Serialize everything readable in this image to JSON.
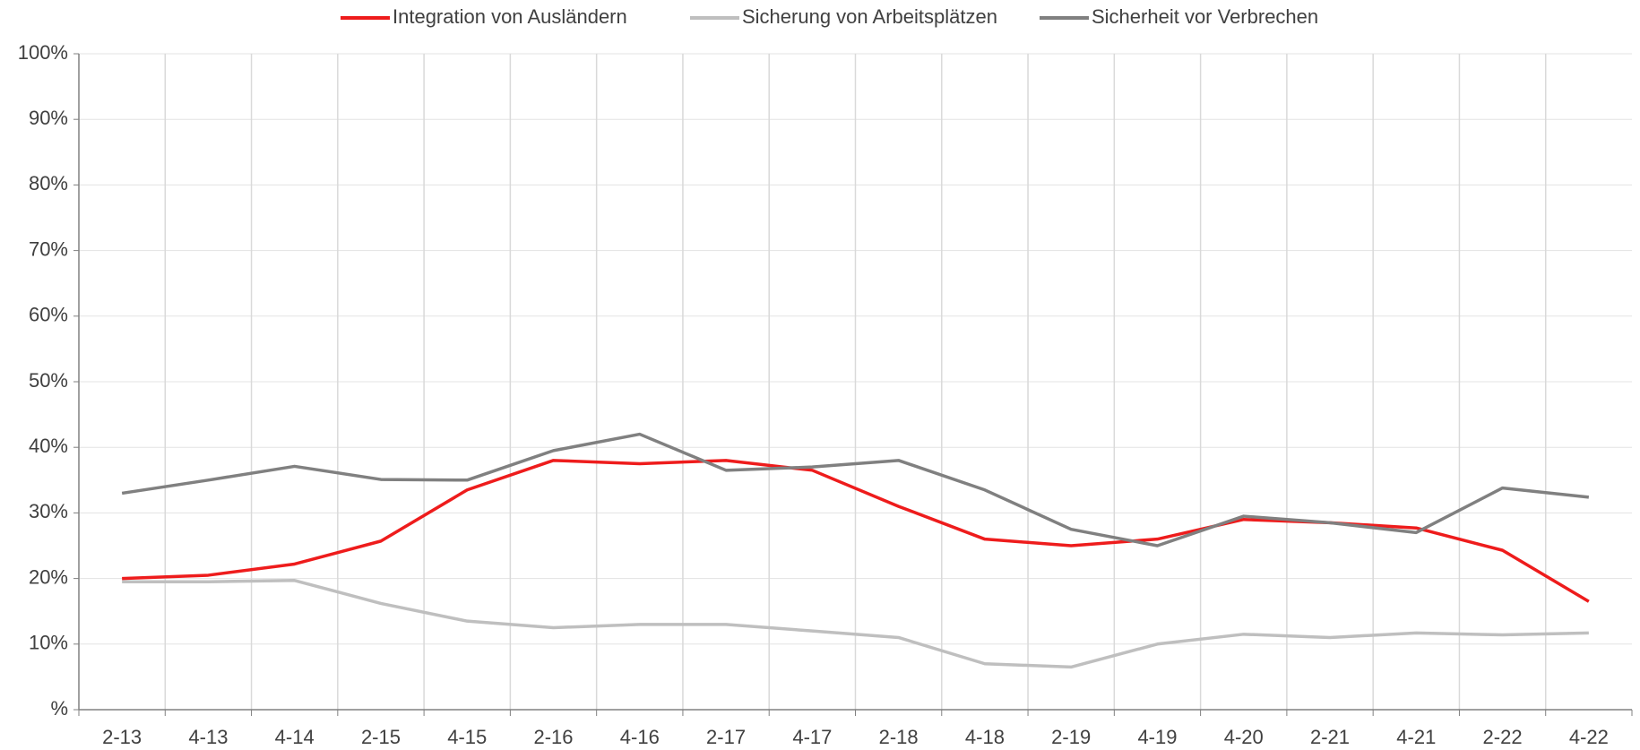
{
  "chart_data": {
    "type": "line",
    "categories": [
      "2-13",
      "4-13",
      "4-14",
      "2-15",
      "4-15",
      "2-16",
      "4-16",
      "2-17",
      "4-17",
      "2-18",
      "4-18",
      "2-19",
      "4-19",
      "4-20",
      "2-21",
      "4-21",
      "2-22",
      "4-22"
    ],
    "series": [
      {
        "name": "Integration von Ausländern",
        "color": "#ee1c1c",
        "values": [
          20,
          20.5,
          22.2,
          25.7,
          33.5,
          38,
          37.5,
          38,
          36.5,
          31,
          26,
          25,
          26,
          29,
          28.5,
          27.7,
          24.3,
          16.5
        ]
      },
      {
        "name": "Sicherung von Arbeitsplätzen",
        "color": "#bfbfbf",
        "values": [
          19.5,
          19.5,
          19.7,
          16.2,
          13.5,
          12.5,
          13,
          13,
          12,
          11,
          7,
          6.5,
          10,
          11.5,
          11,
          11.7,
          11.4,
          11.7
        ]
      },
      {
        "name": "Sicherheit vor Verbrechen",
        "color": "#808080",
        "values": [
          33,
          35,
          37.1,
          35.1,
          35,
          39.5,
          42,
          36.5,
          37,
          38,
          33.5,
          27.5,
          25,
          29.5,
          28.5,
          27,
          33.8,
          32.4
        ]
      }
    ],
    "ylim": [
      0,
      100
    ],
    "yticks": [
      {
        "value": 0,
        "label": "%"
      },
      {
        "value": 10,
        "label": "10%"
      },
      {
        "value": 20,
        "label": "20%"
      },
      {
        "value": 30,
        "label": "30%"
      },
      {
        "value": 40,
        "label": "40%"
      },
      {
        "value": 50,
        "label": "50%"
      },
      {
        "value": 60,
        "label": "60%"
      },
      {
        "value": 70,
        "label": "70%"
      },
      {
        "value": 80,
        "label": "80%"
      },
      {
        "value": 90,
        "label": "90%"
      },
      {
        "value": 100,
        "label": "100%"
      }
    ],
    "grid": true,
    "legend": "top"
  }
}
